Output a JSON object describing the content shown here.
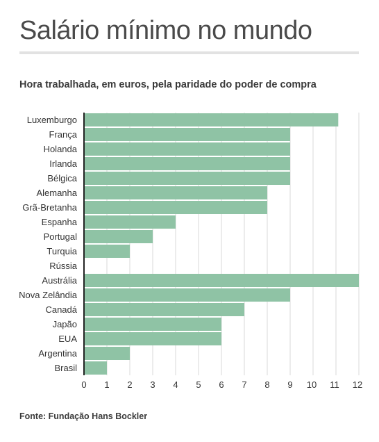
{
  "header": {
    "title": "Salário mínimo no mundo",
    "subtitle": "Hora trabalhada, em euros, pela paridade do poder de compra"
  },
  "footer": {
    "source": "Fonte: Fundação Hans Bockler"
  },
  "colors": {
    "bar": "#8fc3a5",
    "grid": "#d9d9d9",
    "axis": "#222222",
    "text": "#333333"
  },
  "chart_data": {
    "type": "bar",
    "orientation": "horizontal",
    "categories": [
      "Luxemburgo",
      "França",
      "Holanda",
      "Irlanda",
      "Bélgica",
      "Alemanha",
      "Grã-Bretanha",
      "Espanha",
      "Portugal",
      "Turquia",
      "Rússia",
      "Austrália",
      "Nova Zelândia",
      "Canadá",
      "Japão",
      "EUA",
      "Argentina",
      "Brasil"
    ],
    "values": [
      11.1,
      9.0,
      9.0,
      9.0,
      9.0,
      8.0,
      8.0,
      4.0,
      3.0,
      2.0,
      0,
      12.0,
      9.0,
      7.0,
      6.0,
      6.0,
      2.0,
      1.0
    ],
    "xlim": [
      0,
      12
    ],
    "xticks": [
      0,
      1,
      2,
      3,
      4,
      5,
      6,
      7,
      8,
      9,
      10,
      11,
      12
    ],
    "grid": true,
    "legend": "none"
  }
}
